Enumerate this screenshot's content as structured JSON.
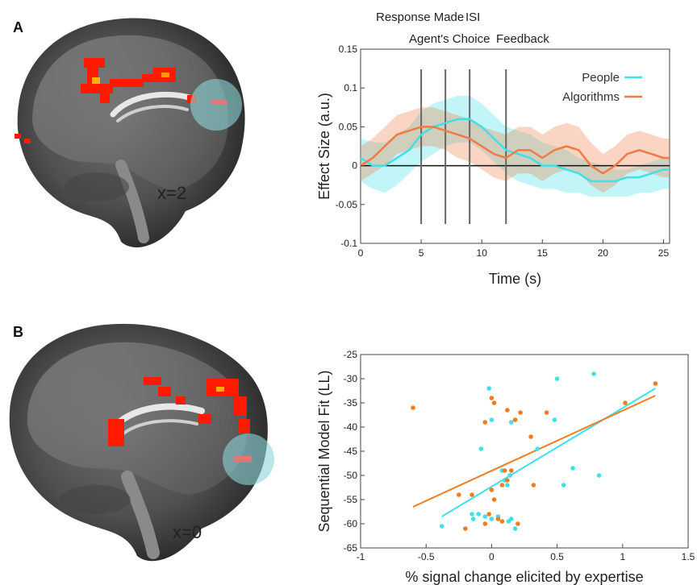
{
  "figure": {
    "panels": [
      {
        "letter": "A",
        "slice_label": "x=2"
      },
      {
        "letter": "B",
        "slice_label": "x=0"
      }
    ]
  },
  "colors": {
    "people": "#3fe0e6",
    "algorithms": "#f07b45",
    "scatter_orange": "#ef7d1f",
    "activation": "#ff1a00"
  },
  "chart_data": [
    {
      "type": "line",
      "panel": "A",
      "xlabel": "Time (s)",
      "ylabel": "Effect Size (a.u.)",
      "xlim": [
        0,
        25.5
      ],
      "ylim": [
        -0.1,
        0.15
      ],
      "xticks": [
        0,
        5,
        10,
        15,
        20,
        25
      ],
      "yticks": [
        -0.1,
        -0.05,
        0,
        0.05,
        0.1,
        0.15
      ],
      "ytick_labels": [
        "-0.1",
        "-0.05",
        "0",
        "0.05",
        "0.1",
        "0.15"
      ],
      "event_lines": [
        {
          "x": 5.0,
          "label": "Response Made"
        },
        {
          "x": 7.0,
          "label": "Agent's Choice"
        },
        {
          "x": 9.0,
          "label": "ISI"
        },
        {
          "x": 12.0,
          "label": "Feedback"
        }
      ],
      "legend": {
        "position": "top-right"
      },
      "x": [
        0,
        1,
        2,
        3,
        4,
        5,
        6,
        7,
        8,
        9,
        10,
        11,
        12,
        13,
        14,
        15,
        16,
        17,
        18,
        19,
        20,
        21,
        22,
        23,
        24,
        25,
        25.5
      ],
      "series": [
        {
          "name": "People",
          "values": [
            0.01,
            0.0,
            0.0,
            0.01,
            0.02,
            0.04,
            0.05,
            0.055,
            0.06,
            0.06,
            0.05,
            0.035,
            0.02,
            0.015,
            0.01,
            0.0,
            0.0,
            -0.005,
            -0.01,
            -0.02,
            -0.02,
            -0.02,
            -0.015,
            -0.015,
            -0.01,
            -0.005,
            -0.005
          ],
          "lower": [
            -0.02,
            -0.03,
            -0.035,
            -0.025,
            -0.01,
            0.005,
            0.015,
            0.025,
            0.03,
            0.03,
            0.02,
            0.005,
            -0.01,
            -0.02,
            -0.025,
            -0.03,
            -0.03,
            -0.035,
            -0.035,
            -0.04,
            -0.04,
            -0.04,
            -0.04,
            -0.035,
            -0.035,
            -0.03,
            -0.03
          ],
          "upper": [
            0.035,
            0.03,
            0.03,
            0.04,
            0.05,
            0.07,
            0.08,
            0.085,
            0.09,
            0.09,
            0.08,
            0.065,
            0.05,
            0.045,
            0.04,
            0.03,
            0.025,
            0.02,
            0.01,
            0.005,
            0.0,
            -0.005,
            -0.005,
            0.0,
            0.005,
            0.01,
            0.01
          ]
        },
        {
          "name": "Algorithms",
          "values": [
            0.0,
            0.01,
            0.025,
            0.04,
            0.045,
            0.05,
            0.05,
            0.045,
            0.04,
            0.035,
            0.025,
            0.015,
            0.01,
            0.02,
            0.02,
            0.01,
            0.02,
            0.025,
            0.02,
            0.0,
            -0.01,
            0.0,
            0.015,
            0.02,
            0.015,
            0.01,
            0.01
          ],
          "lower": [
            -0.02,
            -0.01,
            0.0,
            0.015,
            0.02,
            0.025,
            0.025,
            0.02,
            0.01,
            0.005,
            -0.005,
            -0.015,
            -0.02,
            -0.01,
            -0.01,
            -0.02,
            -0.01,
            -0.005,
            -0.01,
            -0.025,
            -0.035,
            -0.025,
            -0.01,
            -0.005,
            -0.01,
            -0.015,
            -0.015
          ],
          "upper": [
            0.025,
            0.035,
            0.05,
            0.065,
            0.07,
            0.075,
            0.075,
            0.07,
            0.065,
            0.06,
            0.05,
            0.045,
            0.04,
            0.05,
            0.05,
            0.04,
            0.05,
            0.055,
            0.05,
            0.03,
            0.015,
            0.025,
            0.04,
            0.045,
            0.04,
            0.035,
            0.035
          ]
        }
      ],
      "zero_line": true
    },
    {
      "type": "scatter",
      "panel": "B",
      "xlabel": "% signal change elicited by expertise",
      "ylabel": "Sequential Model Fit (LL)",
      "xlim": [
        -1,
        1.5
      ],
      "ylim": [
        -65,
        -25
      ],
      "xticks": [
        -1,
        -0.5,
        0,
        0.5,
        1,
        1.5
      ],
      "xtick_labels": [
        "-1",
        "-0.5",
        "0",
        "0.5",
        "1",
        "1.5"
      ],
      "yticks": [
        -65,
        -60,
        -55,
        -50,
        -45,
        -40,
        -35,
        -30,
        -25
      ],
      "series": [
        {
          "name": "cyan",
          "points": [
            [
              -0.38,
              -60.5
            ],
            [
              -0.15,
              -58
            ],
            [
              -0.14,
              -59
            ],
            [
              -0.1,
              -58
            ],
            [
              -0.05,
              -58.5
            ],
            [
              0.0,
              -59
            ],
            [
              0.05,
              -58.5
            ],
            [
              0.13,
              -59.5
            ],
            [
              0.15,
              -59
            ],
            [
              0.18,
              -61
            ],
            [
              0.1,
              -51
            ],
            [
              0.14,
              -50
            ],
            [
              0.12,
              -52
            ],
            [
              0.08,
              -49
            ],
            [
              -0.02,
              -32
            ],
            [
              0.0,
              -38.5
            ],
            [
              -0.08,
              -44.5
            ],
            [
              0.15,
              -39
            ],
            [
              0.35,
              -44.5
            ],
            [
              0.5,
              -30
            ],
            [
              0.48,
              -38.5
            ],
            [
              0.55,
              -52
            ],
            [
              0.62,
              -48.5
            ],
            [
              0.78,
              -29
            ],
            [
              0.82,
              -50
            ]
          ],
          "fit": [
            [
              -0.38,
              -58.5
            ],
            [
              1.25,
              -32
            ]
          ]
        },
        {
          "name": "orange",
          "points": [
            [
              -0.6,
              -36
            ],
            [
              -0.25,
              -54
            ],
            [
              -0.2,
              -61
            ],
            [
              -0.15,
              -54
            ],
            [
              -0.05,
              -60
            ],
            [
              -0.02,
              -58
            ],
            [
              0.0,
              -53
            ],
            [
              0.02,
              -55
            ],
            [
              0.05,
              -59
            ],
            [
              0.08,
              -52
            ],
            [
              0.1,
              -49
            ],
            [
              0.12,
              -51
            ],
            [
              0.15,
              -49
            ],
            [
              0.08,
              -59.5
            ],
            [
              0.2,
              -60
            ],
            [
              0.0,
              -34
            ],
            [
              0.02,
              -35
            ],
            [
              -0.05,
              -39
            ],
            [
              0.12,
              -36.5
            ],
            [
              0.18,
              -38.5
            ],
            [
              0.22,
              -37
            ],
            [
              0.3,
              -42
            ],
            [
              0.32,
              -52
            ],
            [
              0.42,
              -37
            ],
            [
              1.02,
              -35
            ],
            [
              1.25,
              -31
            ]
          ],
          "fit": [
            [
              -0.6,
              -56.5
            ],
            [
              1.25,
              -33.5
            ]
          ]
        }
      ]
    }
  ]
}
